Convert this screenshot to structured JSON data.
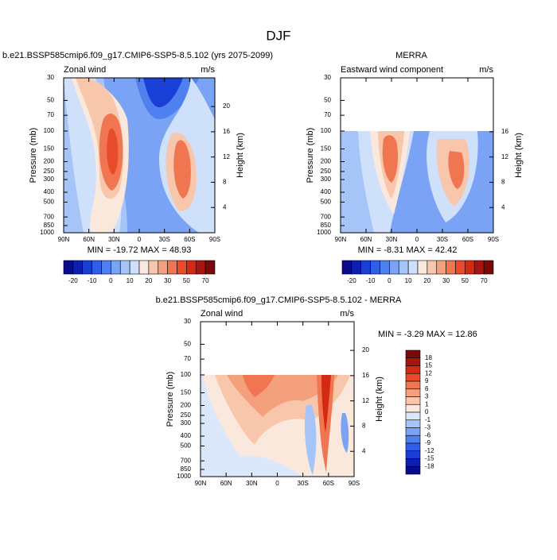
{
  "title": "DJF",
  "lat_axis": {
    "lim": [
      90,
      -90
    ],
    "ticks": [
      {
        "value": 90,
        "label": "90N"
      },
      {
        "value": 60,
        "label": "60N"
      },
      {
        "value": 30,
        "label": "30N"
      },
      {
        "value": 0,
        "label": "0"
      },
      {
        "value": -30,
        "label": "30S"
      },
      {
        "value": -60,
        "label": "60S"
      },
      {
        "value": -90,
        "label": "90S"
      }
    ]
  },
  "pressure_axis": {
    "label": "Pressure (mb)",
    "lim": [
      30,
      1000
    ],
    "log": true,
    "ticks": [
      30,
      50,
      70,
      100,
      150,
      200,
      250,
      300,
      400,
      500,
      700,
      850,
      1000
    ]
  },
  "height_axis": {
    "label": "Height (km)"
  },
  "panels": [
    {
      "title": "b.e21.BSSP585cmip6.f09_g17.CMIP6-SSP5-8.5.102 (yrs 2075-2099)",
      "left_label": "Zonal wind",
      "right_label": "m/s",
      "stats": "MIN = -19.72  MAX = 48.93",
      "height_ticks": [
        4,
        8,
        12,
        16,
        20
      ]
    },
    {
      "title": "MERRA",
      "left_label": "Eastward wind component",
      "right_label": "m/s",
      "stats": "MIN = -8.31  MAX = 42.42",
      "height_ticks": [
        4,
        8,
        12,
        16
      ]
    },
    {
      "title": "b.e21.BSSP585cmip6.f09_g17.CMIP6-SSP5-8.5.102 - MERRA",
      "left_label": "Zonal wind",
      "right_label": "m/s",
      "stats": "MIN = -3.29  MAX = 12.86",
      "height_ticks": [
        4,
        8,
        12,
        16,
        20
      ]
    }
  ],
  "colorbars": [
    {
      "labels": [
        -20,
        -10,
        0,
        10,
        20,
        30,
        50,
        70
      ],
      "colors": [
        "#0a0a8c",
        "#0d1fb0",
        "#1a3fd6",
        "#2f5fe8",
        "#4f80f0",
        "#7aa2f5",
        "#a5c4f8",
        "#cfe0fb",
        "#fbe8dc",
        "#f8c6aa",
        "#f4a07c",
        "#ef7650",
        "#e84a2c",
        "#d42a14",
        "#a81410",
        "#7a0a0a"
      ]
    },
    {
      "labels": [
        18,
        15,
        12,
        9,
        6,
        3,
        1,
        0,
        -1,
        -3,
        -6,
        -9,
        -12,
        -15,
        -18
      ],
      "colors": [
        "#7a0a0a",
        "#a81410",
        "#d42a14",
        "#e84a2c",
        "#ef7650",
        "#f4a07c",
        "#f8c6aa",
        "#fbe8dc",
        "#dbe8fb",
        "#a5c4f8",
        "#7aa2f5",
        "#4f80f0",
        "#2f5fe8",
        "#1a3fd6",
        "#0d1fb0",
        "#0a0a8c"
      ]
    }
  ]
}
